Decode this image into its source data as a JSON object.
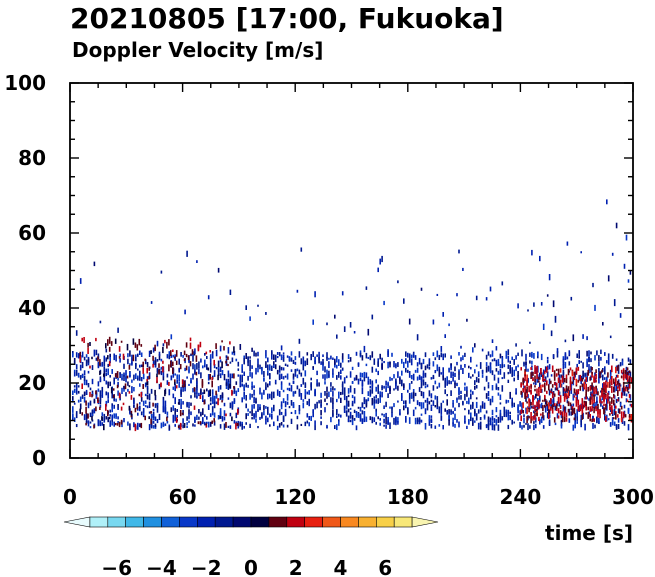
{
  "chart_data": {
    "type": "scatter",
    "title": "20210805 [17:00, Fukuoka]",
    "subtitle": "Doppler Velocity [m/s]",
    "xlabel": "time [s]",
    "ylabel": "",
    "xlim": [
      0,
      300
    ],
    "ylim": [
      0,
      100
    ],
    "xticks": [
      0,
      60,
      120,
      180,
      240,
      300
    ],
    "yticks": [
      0,
      20,
      40,
      60,
      80,
      100
    ],
    "grid": false,
    "colorbar": {
      "label": "Doppler Velocity [m/s]",
      "range": [
        -8,
        8
      ],
      "ticks": [
        -6,
        -4,
        -2,
        0,
        2,
        4,
        6
      ],
      "colors": [
        "#e8fbfd",
        "#b0f0f8",
        "#78d8f0",
        "#40b8e8",
        "#2090e0",
        "#1060d8",
        "#0838c8",
        "#0020b0",
        "#001890",
        "#000870",
        "#000040",
        "#600010",
        "#c00010",
        "#e82010",
        "#f05818",
        "#f88820",
        "#f8b030",
        "#f8d048",
        "#f8e878",
        "#f8f4b0"
      ]
    },
    "series": [
      {
        "x_range": [
          0,
          300
        ],
        "y_min": 8,
        "y_max": 28,
        "density": "high",
        "color_range": [
          -3,
          -0.5
        ],
        "description": "blue echoes"
      },
      {
        "x_range": [
          5,
          90
        ],
        "y_min": 8,
        "y_max": 32,
        "density": "medium",
        "color_range": [
          0.5,
          2
        ],
        "description": "red echoes"
      },
      {
        "x_range": [
          240,
          300
        ],
        "y_min": 10,
        "y_max": 24,
        "density": "high",
        "color_range": [
          1,
          2.5
        ],
        "description": "red echoes"
      },
      {
        "x_range": [
          0,
          300
        ],
        "y_min": 28,
        "y_max": 70,
        "density": "low",
        "color_range": [
          -2.5,
          -0.5
        ],
        "description": "sparse echoes"
      }
    ]
  }
}
